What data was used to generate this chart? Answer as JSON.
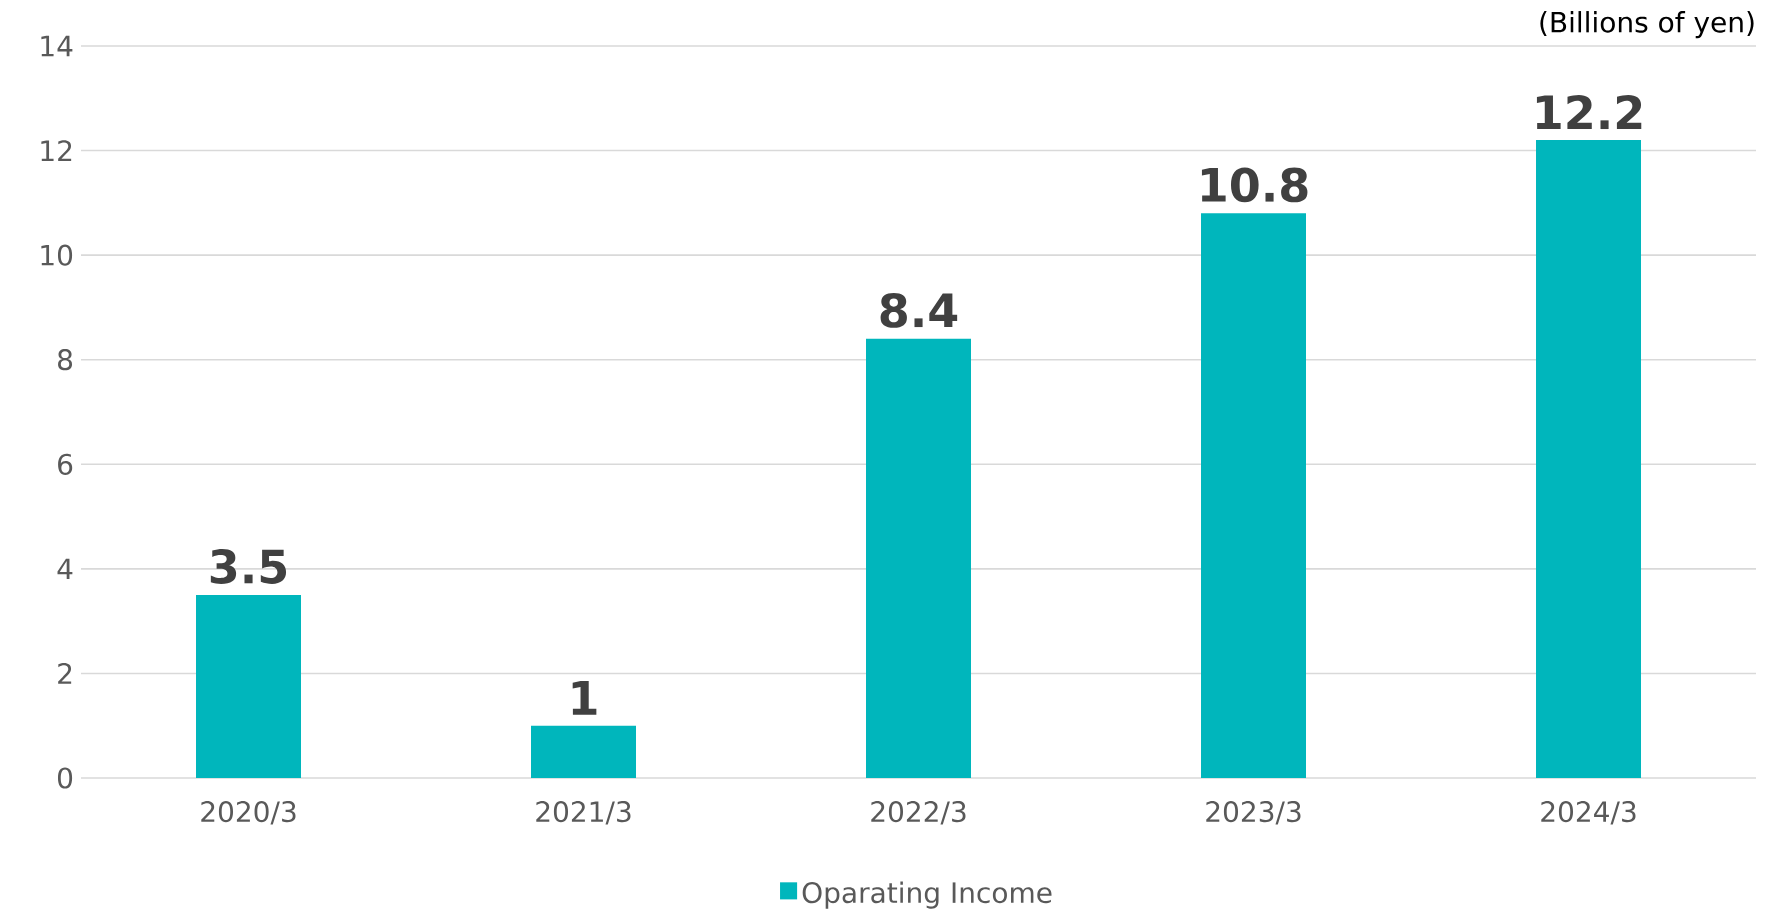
{
  "chart_data": {
    "type": "bar",
    "categories": [
      "2020/3",
      "2021/3",
      "2022/3",
      "2023/3",
      "2024/3"
    ],
    "series": [
      {
        "name": "Oparating Income",
        "color": "#00b6bc",
        "values": [
          3.5,
          1,
          8.4,
          10.8,
          12.2
        ]
      }
    ],
    "ylim": [
      0,
      14
    ],
    "yticks": [
      0,
      2,
      4,
      6,
      8,
      10,
      12,
      14
    ],
    "grid": "y",
    "legend": "bottom",
    "data_labels": true,
    "annotations": [
      "(Billions of yen)"
    ]
  }
}
